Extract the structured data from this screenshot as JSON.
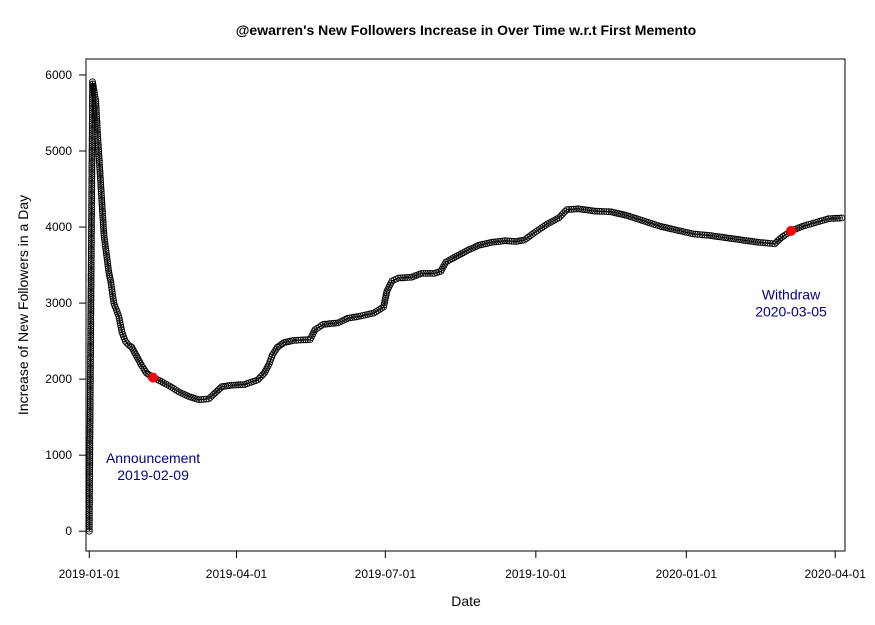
{
  "chart_data": {
    "type": "line",
    "title": "@ewarren's New Followers Increase in Over Time w.r.t First Memento",
    "xlabel": "Date",
    "ylabel": "Increase of New Followers in a Day",
    "x_axis_type": "date",
    "xlim": [
      "2018-12-30",
      "2020-04-07"
    ],
    "ylim": [
      -260,
      6210
    ],
    "x_ticks": [
      "2019-01-01",
      "2019-04-01",
      "2019-07-01",
      "2019-10-01",
      "2020-01-01",
      "2020-04-01"
    ],
    "y_ticks": [
      0,
      1000,
      2000,
      3000,
      4000,
      5000,
      6000
    ],
    "grid": false,
    "series": [
      {
        "marker": "open-circle",
        "line": "solid",
        "color": "#000000",
        "points": [
          [
            "2019-01-01",
            0
          ],
          [
            "2019-01-03",
            5910
          ],
          [
            "2019-01-05",
            5650
          ],
          [
            "2019-01-06",
            5250
          ],
          [
            "2019-01-10",
            3890
          ],
          [
            "2019-01-13",
            3400
          ],
          [
            "2019-01-14",
            3300
          ],
          [
            "2019-01-16",
            3000
          ],
          [
            "2019-01-19",
            2830
          ],
          [
            "2019-01-21",
            2620
          ],
          [
            "2019-01-23",
            2500
          ],
          [
            "2019-01-25",
            2450
          ],
          [
            "2019-01-27",
            2420
          ],
          [
            "2019-01-30",
            2300
          ],
          [
            "2019-02-02",
            2180
          ],
          [
            "2019-02-05",
            2080
          ],
          [
            "2019-02-09",
            2020
          ],
          [
            "2019-02-13",
            1980
          ],
          [
            "2019-02-19",
            1910
          ],
          [
            "2019-02-25",
            1830
          ],
          [
            "2019-03-03",
            1770
          ],
          [
            "2019-03-09",
            1730
          ],
          [
            "2019-03-15",
            1740
          ],
          [
            "2019-03-19",
            1820
          ],
          [
            "2019-03-23",
            1900
          ],
          [
            "2019-03-29",
            1920
          ],
          [
            "2019-04-06",
            1930
          ],
          [
            "2019-04-14",
            1990
          ],
          [
            "2019-04-18",
            2080
          ],
          [
            "2019-04-21",
            2200
          ],
          [
            "2019-04-23",
            2320
          ],
          [
            "2019-04-26",
            2420
          ],
          [
            "2019-04-30",
            2480
          ],
          [
            "2019-05-06",
            2510
          ],
          [
            "2019-05-16",
            2520
          ],
          [
            "2019-05-19",
            2650
          ],
          [
            "2019-05-24",
            2720
          ],
          [
            "2019-06-02",
            2740
          ],
          [
            "2019-06-08",
            2800
          ],
          [
            "2019-06-16",
            2830
          ],
          [
            "2019-06-24",
            2870
          ],
          [
            "2019-06-30",
            2950
          ],
          [
            "2019-07-01",
            3060
          ],
          [
            "2019-07-02",
            3160
          ],
          [
            "2019-07-05",
            3290
          ],
          [
            "2019-07-09",
            3330
          ],
          [
            "2019-07-17",
            3340
          ],
          [
            "2019-07-23",
            3390
          ],
          [
            "2019-07-31",
            3390
          ],
          [
            "2019-08-04",
            3420
          ],
          [
            "2019-08-07",
            3540
          ],
          [
            "2019-08-13",
            3610
          ],
          [
            "2019-08-20",
            3690
          ],
          [
            "2019-08-27",
            3760
          ],
          [
            "2019-09-04",
            3800
          ],
          [
            "2019-09-12",
            3820
          ],
          [
            "2019-09-19",
            3810
          ],
          [
            "2019-09-24",
            3830
          ],
          [
            "2019-10-01",
            3940
          ],
          [
            "2019-10-08",
            4040
          ],
          [
            "2019-10-15",
            4120
          ],
          [
            "2019-10-20",
            4230
          ],
          [
            "2019-10-27",
            4240
          ],
          [
            "2019-11-06",
            4210
          ],
          [
            "2019-11-16",
            4200
          ],
          [
            "2019-11-26",
            4150
          ],
          [
            "2019-12-06",
            4080
          ],
          [
            "2019-12-16",
            4010
          ],
          [
            "2019-12-26",
            3960
          ],
          [
            "2020-01-05",
            3910
          ],
          [
            "2020-01-15",
            3890
          ],
          [
            "2020-01-25",
            3860
          ],
          [
            "2020-02-04",
            3830
          ],
          [
            "2020-02-14",
            3800
          ],
          [
            "2020-02-24",
            3780
          ],
          [
            "2020-02-28",
            3860
          ],
          [
            "2020-03-05",
            3950
          ],
          [
            "2020-03-12",
            4010
          ],
          [
            "2020-03-20",
            4060
          ],
          [
            "2020-03-28",
            4110
          ],
          [
            "2020-04-05",
            4120
          ]
        ]
      }
    ],
    "highlighted_points": [
      {
        "x": "2019-02-09",
        "y": 2020,
        "color": "#ff0000"
      },
      {
        "x": "2020-03-05",
        "y": 3950,
        "color": "#ff0000"
      }
    ],
    "annotations": [
      {
        "lines": [
          "Announcement",
          "2019-02-09"
        ],
        "x": "2019-02-09",
        "y": 900,
        "color": "#000080"
      },
      {
        "lines": [
          "Withdraw",
          "2020-03-05"
        ],
        "x": "2020-03-05",
        "y": 3050,
        "color": "#000080"
      }
    ]
  }
}
